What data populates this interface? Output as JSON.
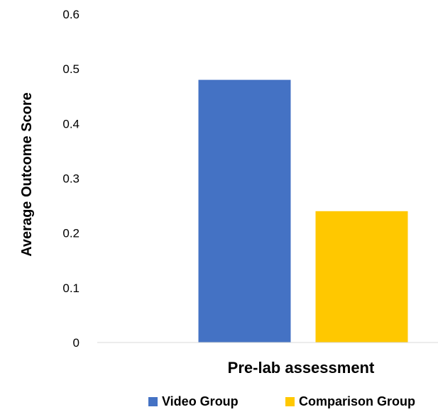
{
  "chart_data": {
    "type": "bar",
    "categories": [
      "Pre-lab assessment"
    ],
    "series": [
      {
        "name": "Video Group",
        "values": [
          0.48
        ],
        "color": "#4472C4"
      },
      {
        "name": "Comparison Group",
        "values": [
          0.24
        ],
        "color": "#FFC800"
      }
    ],
    "title": "",
    "xlabel": "",
    "ylabel": "Average Outcome Score",
    "ylim": [
      0,
      0.6
    ],
    "yticks": [
      "0",
      "0.1",
      "0.2",
      "0.3",
      "0.4",
      "0.5",
      "0.6"
    ],
    "grid": false,
    "legend": "bottom"
  }
}
